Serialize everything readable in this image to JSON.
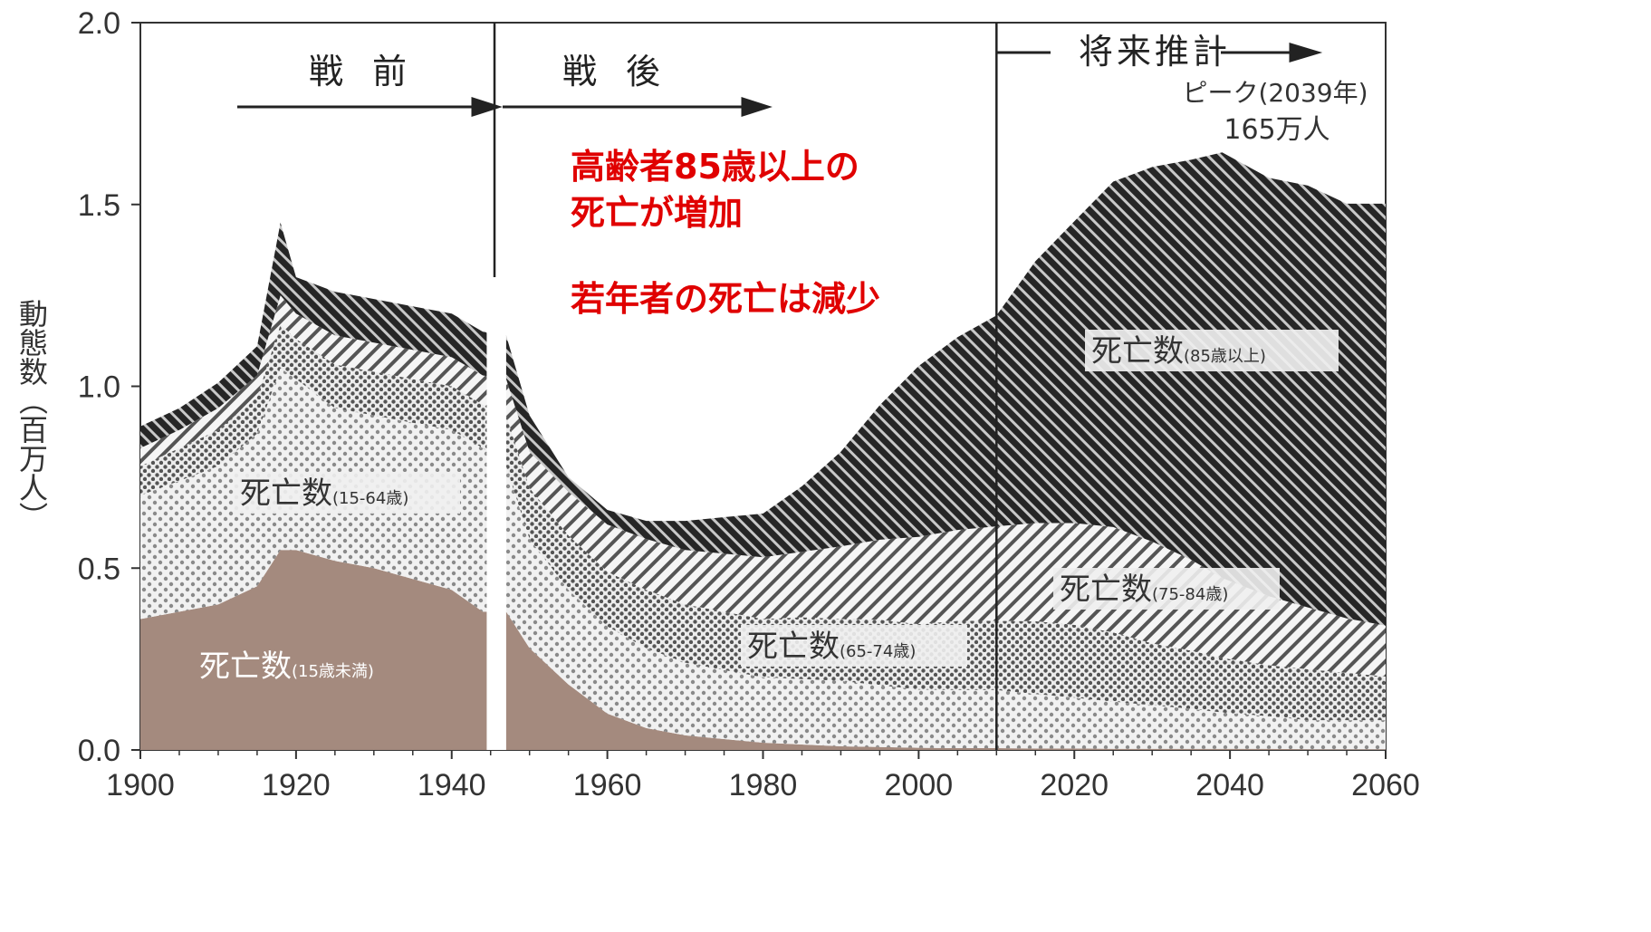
{
  "chart_data": {
    "type": "area",
    "ylabel": "動態数（百万人）",
    "xlim": [
      1900,
      2060
    ],
    "ylim": [
      0,
      2.0
    ],
    "x_ticks": [
      "1900",
      "1920",
      "1940",
      "1960",
      "1980",
      "2000",
      "2020",
      "2040",
      "2060"
    ],
    "y_ticks": [
      "0.0",
      "0.5",
      "1.0",
      "1.5",
      "2.0"
    ],
    "eras": [
      {
        "label": "戦 前"
      },
      {
        "label": "戦 後"
      },
      {
        "label": "将来推計"
      }
    ],
    "peak_annotation": {
      "line1": "ピーク(2039年)",
      "line2": "165万人"
    },
    "red_notes": [
      "高齢者85歳以上の",
      "死亡が増加",
      "若年者の死亡は減少"
    ],
    "segment_labels": [
      {
        "main": "死亡数",
        "sub": "(15歳未満)"
      },
      {
        "main": "死亡数",
        "sub": "(15-64歳)"
      },
      {
        "main": "死亡数",
        "sub": "(65-74歳)"
      },
      {
        "main": "死亡数",
        "sub": "(75-84歳)"
      },
      {
        "main": "死亡数",
        "sub": "(85歳以上)"
      }
    ],
    "x": [
      1900,
      1905,
      1910,
      1915,
      1918,
      1920,
      1925,
      1930,
      1935,
      1940,
      1944,
      1947,
      1950,
      1955,
      1960,
      1965,
      1970,
      1975,
      1980,
      1985,
      1990,
      1995,
      2000,
      2005,
      2010,
      2015,
      2020,
      2025,
      2030,
      2035,
      2039,
      2045,
      2050,
      2055,
      2060
    ],
    "series": [
      {
        "name": "15歳未満",
        "values": [
          0.36,
          0.38,
          0.4,
          0.45,
          0.55,
          0.55,
          0.52,
          0.5,
          0.47,
          0.44,
          0.38,
          0.38,
          0.28,
          0.18,
          0.1,
          0.06,
          0.04,
          0.03,
          0.02,
          0.015,
          0.01,
          0.008,
          0.006,
          0.005,
          0.005,
          0.004,
          0.004,
          0.003,
          0.003,
          0.003,
          0.003,
          0.003,
          0.002,
          0.002,
          0.002
        ]
      },
      {
        "name": "15-64歳",
        "values": [
          0.34,
          0.36,
          0.38,
          0.42,
          0.5,
          0.47,
          0.42,
          0.42,
          0.43,
          0.44,
          0.45,
          0.4,
          0.3,
          0.26,
          0.24,
          0.22,
          0.2,
          0.19,
          0.18,
          0.18,
          0.18,
          0.17,
          0.16,
          0.16,
          0.16,
          0.15,
          0.14,
          0.13,
          0.12,
          0.11,
          0.1,
          0.09,
          0.08,
          0.08,
          0.08
        ]
      },
      {
        "name": "65-74歳",
        "values": [
          0.08,
          0.09,
          0.1,
          0.1,
          0.12,
          0.11,
          0.12,
          0.12,
          0.12,
          0.12,
          0.12,
          0.14,
          0.14,
          0.15,
          0.15,
          0.16,
          0.16,
          0.16,
          0.16,
          0.17,
          0.17,
          0.18,
          0.18,
          0.19,
          0.19,
          0.2,
          0.2,
          0.19,
          0.17,
          0.16,
          0.15,
          0.14,
          0.14,
          0.13,
          0.12
        ]
      },
      {
        "name": "75-84歳",
        "values": [
          0.05,
          0.05,
          0.06,
          0.06,
          0.08,
          0.07,
          0.08,
          0.08,
          0.08,
          0.08,
          0.08,
          0.1,
          0.1,
          0.12,
          0.13,
          0.14,
          0.15,
          0.16,
          0.17,
          0.18,
          0.2,
          0.22,
          0.24,
          0.25,
          0.26,
          0.27,
          0.28,
          0.29,
          0.28,
          0.25,
          0.22,
          0.19,
          0.17,
          0.15,
          0.14
        ]
      },
      {
        "name": "85歳以上",
        "values": [
          0.06,
          0.06,
          0.07,
          0.08,
          0.2,
          0.1,
          0.12,
          0.12,
          0.12,
          0.12,
          0.12,
          0.12,
          0.1,
          0.04,
          0.04,
          0.05,
          0.08,
          0.1,
          0.12,
          0.18,
          0.26,
          0.37,
          0.47,
          0.53,
          0.58,
          0.72,
          0.83,
          0.95,
          1.03,
          1.1,
          1.17,
          1.15,
          1.16,
          1.14,
          1.16
        ]
      }
    ],
    "colors": {
      "s0": "#a48a7e",
      "s1": "#9a9a9a",
      "s2": "#7a7a7a",
      "s3": "#5e5e5e",
      "s4": "#333333"
    }
  }
}
